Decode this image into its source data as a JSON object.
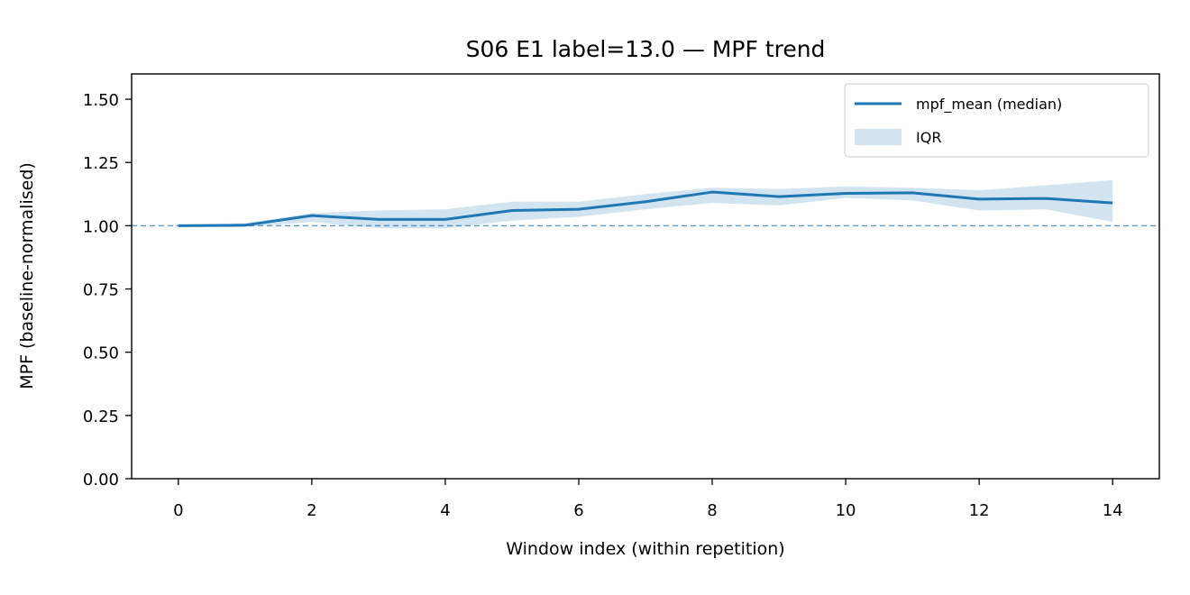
{
  "chart_data": {
    "type": "line",
    "title": "S06 E1 label=13.0 — MPF trend",
    "xlabel": "Window index (within repetition)",
    "ylabel": "MPF (baseline-normalised)",
    "xlim": [
      -0.7,
      14.7
    ],
    "ylim": [
      0.0,
      1.6
    ],
    "xticks": [
      0,
      2,
      4,
      6,
      8,
      10,
      12,
      14
    ],
    "xtick_labels": [
      "0",
      "2",
      "4",
      "6",
      "8",
      "10",
      "12",
      "14"
    ],
    "yticks": [
      0.0,
      0.25,
      0.5,
      0.75,
      1.0,
      1.25,
      1.5
    ],
    "ytick_labels": [
      "0.00",
      "0.25",
      "0.50",
      "0.75",
      "1.00",
      "1.25",
      "1.50"
    ],
    "grid": false,
    "legend_position": "top-right",
    "reference_line": {
      "y": 1.0,
      "style": "dashed"
    },
    "x": [
      0,
      1,
      2,
      3,
      4,
      5,
      6,
      7,
      8,
      9,
      10,
      11,
      12,
      13,
      14
    ],
    "series": [
      {
        "name": "mpf_mean (median)",
        "values": [
          1.0,
          1.002,
          1.04,
          1.025,
          1.025,
          1.06,
          1.065,
          1.095,
          1.133,
          1.115,
          1.128,
          1.13,
          1.105,
          1.108,
          1.09
        ],
        "color": "#1f77b4"
      }
    ],
    "band": {
      "name": "IQR",
      "lower": [
        0.995,
        0.995,
        1.015,
        0.99,
        0.99,
        1.02,
        1.035,
        1.065,
        1.09,
        1.08,
        1.11,
        1.1,
        1.06,
        1.065,
        1.015
      ],
      "upper": [
        1.005,
        1.01,
        1.05,
        1.06,
        1.065,
        1.095,
        1.095,
        1.125,
        1.15,
        1.145,
        1.155,
        1.15,
        1.14,
        1.16,
        1.18
      ],
      "color": "#1f77b4",
      "opacity": 0.2
    }
  }
}
